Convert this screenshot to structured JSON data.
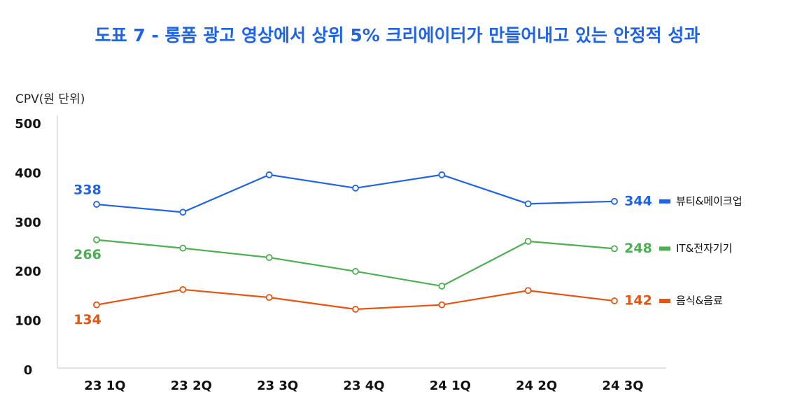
{
  "chart_data": {
    "type": "line",
    "title": "도표 7 - 롱폼 광고 영상에서 상위 5% 크리에이터가 만들어내고 있는 안정적 성과",
    "y_label": "CPV(원 단위)",
    "categories": [
      "23 1Q",
      "23 2Q",
      "23 3Q",
      "23 4Q",
      "24 1Q",
      "24 2Q",
      "24 3Q"
    ],
    "series": [
      {
        "name": "뷰티&메이크업",
        "color": "#1f63e6",
        "values": [
          338,
          322,
          398,
          371,
          398,
          339,
          344
        ]
      },
      {
        "name": "IT&전자기기",
        "color": "#4caf50",
        "values": [
          266,
          249,
          230,
          202,
          172,
          263,
          248
        ]
      },
      {
        "name": "음식&음료",
        "color": "#e8530e",
        "values": [
          134,
          165,
          149,
          125,
          134,
          163,
          142
        ]
      }
    ],
    "data_labels": "ends",
    "ylim": [
      0,
      500
    ],
    "yticks": [
      0,
      100,
      200,
      300,
      400,
      500
    ],
    "grid": false
  }
}
